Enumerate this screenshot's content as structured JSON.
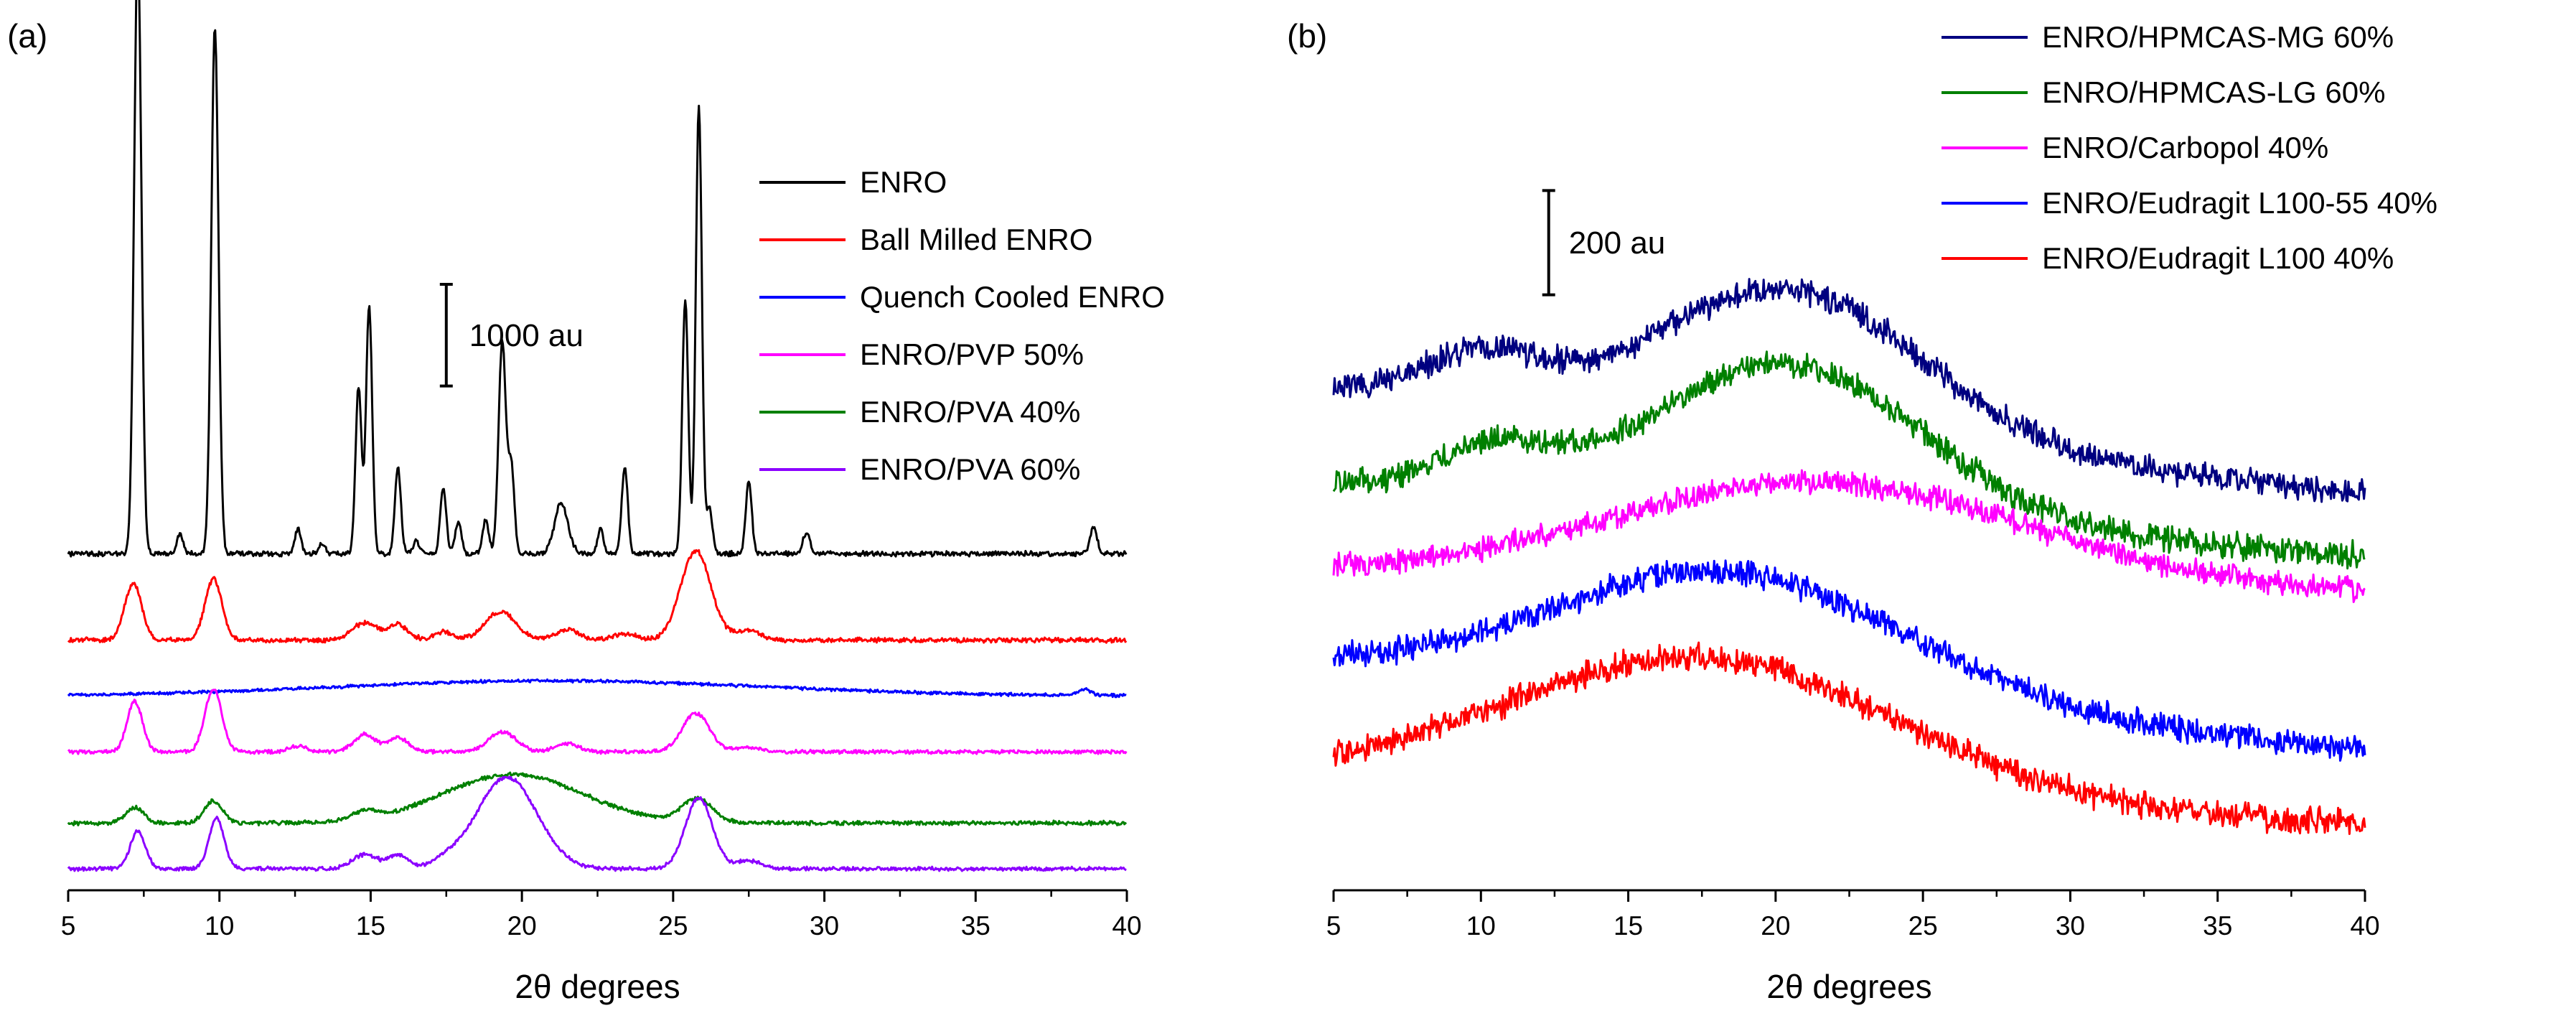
{
  "chart_data": [
    {
      "type": "line",
      "panel_label": "(a)",
      "xlabel": "2θ degrees",
      "ylabel": "",
      "xlim": [
        5,
        40
      ],
      "ylim": [
        0,
        7700
      ],
      "xticks": [
        5,
        10,
        15,
        20,
        25,
        30,
        35,
        40
      ],
      "y_axis_visible": false,
      "scale_bar": {
        "label": "1000 au",
        "value": 1000,
        "x": 17.5,
        "y_bottom": 4750
      },
      "legend": [
        "ENRO",
        "Ball Milled ENRO",
        "Quench Cooled ENRO",
        "ENRO/PVP 50%",
        "ENRO/PVA 40%",
        "ENRO/PVA 60%"
      ],
      "series": [
        {
          "name": "ENRO",
          "color": "#000000",
          "baseline": 3100,
          "noise": 20,
          "peaks": [
            [
              7.3,
              6000,
              0.12
            ],
            [
              8.7,
              200,
              0.1
            ],
            [
              9.85,
              5180,
              0.12
            ],
            [
              12.6,
              250,
              0.1
            ],
            [
              13.4,
              100,
              0.1
            ],
            [
              14.6,
              1650,
              0.1
            ],
            [
              14.95,
              2450,
              0.1
            ],
            [
              15.9,
              850,
              0.1
            ],
            [
              16.5,
              130,
              0.1
            ],
            [
              17.4,
              650,
              0.1
            ],
            [
              17.9,
              320,
              0.1
            ],
            [
              18.8,
              330,
              0.1
            ],
            [
              19.35,
              2100,
              0.12
            ],
            [
              19.65,
              850,
              0.1
            ],
            [
              21.3,
              500,
              0.22
            ],
            [
              22.6,
              250,
              0.1
            ],
            [
              23.4,
              850,
              0.1
            ],
            [
              25.4,
              2500,
              0.1
            ],
            [
              25.85,
              4420,
              0.1
            ],
            [
              26.2,
              450,
              0.1
            ],
            [
              27.5,
              700,
              0.1
            ],
            [
              29.4,
              200,
              0.12
            ],
            [
              38.9,
              250,
              0.12
            ]
          ]
        },
        {
          "name": "Ball Milled ENRO",
          "color": "#ff0000",
          "baseline": 2250,
          "noise": 18,
          "peaks": [
            [
              7.15,
              560,
              0.28
            ],
            [
              9.8,
              600,
              0.28
            ],
            [
              14.8,
              170,
              0.4
            ],
            [
              15.9,
              150,
              0.35
            ],
            [
              17.4,
              80,
              0.3
            ],
            [
              19.3,
              280,
              0.5
            ],
            [
              21.5,
              100,
              0.4
            ],
            [
              23.4,
              60,
              0.4
            ],
            [
              25.75,
              880,
              0.5
            ],
            [
              27.5,
              100,
              0.4
            ]
          ]
        },
        {
          "name": "Quench Cooled ENRO",
          "color": "#0000ff",
          "baseline": 1700,
          "noise": 12,
          "broad": [
            [
              21,
              150,
              7
            ]
          ],
          "peaks": [
            [
              38.6,
              60,
              0.2
            ]
          ]
        },
        {
          "name": "ENRO/PVP 50%",
          "color": "#ff00ff",
          "baseline": 1150,
          "noise": 15,
          "peaks": [
            [
              7.2,
              500,
              0.25
            ],
            [
              9.8,
              620,
              0.28
            ],
            [
              12.6,
              60,
              0.3
            ],
            [
              14.8,
              170,
              0.35
            ],
            [
              15.9,
              140,
              0.35
            ],
            [
              19.35,
              200,
              0.45
            ],
            [
              21.5,
              80,
              0.4
            ],
            [
              25.75,
              380,
              0.45
            ],
            [
              27.5,
              50,
              0.4
            ]
          ]
        },
        {
          "name": "ENRO/PVA 40%",
          "color": "#008000",
          "baseline": 450,
          "noise": 16,
          "broad": [
            [
              19.7,
              480,
              2.3
            ]
          ],
          "peaks": [
            [
              7.2,
              150,
              0.3
            ],
            [
              9.8,
              220,
              0.3
            ],
            [
              14.8,
              80,
              0.4
            ],
            [
              25.8,
              230,
              0.5
            ]
          ]
        },
        {
          "name": "ENRO/PVA 60%",
          "color": "#8b00ff",
          "baseline": 0,
          "noise": 15,
          "broad": [
            [
              19.5,
              900,
              1.0
            ]
          ],
          "peaks": [
            [
              7.3,
              370,
              0.25
            ],
            [
              9.9,
              500,
              0.25
            ],
            [
              14.8,
              140,
              0.4
            ],
            [
              15.9,
              130,
              0.35
            ],
            [
              17.5,
              60,
              0.4
            ],
            [
              25.85,
              700,
              0.45
            ],
            [
              27.5,
              80,
              0.4
            ]
          ]
        }
      ]
    },
    {
      "type": "line",
      "panel_label": "(b)",
      "xlabel": "2θ degrees",
      "ylabel": "",
      "xlim": [
        5,
        40
      ],
      "ylim": [
        0,
        1500
      ],
      "xticks": [
        5,
        10,
        15,
        20,
        25,
        30,
        35,
        40
      ],
      "y_axis_visible": false,
      "scale_bar": {
        "label": "200 au",
        "value": 200,
        "x": 12.3,
        "y_bottom": 1100
      },
      "legend": [
        "ENRO/HPMCAS-MG 60%",
        "ENRO/HPMCAS-LG 60%",
        "ENRO/Carbopol 40%",
        "ENRO/Eudragit L100-55 40%",
        "ENRO/Eudragit L100 40%"
      ],
      "series": [
        {
          "name": "ENRO/HPMCAS-MG 60%",
          "color": "#000080",
          "start": 920,
          "end": 720,
          "noise": 20,
          "broad": [
            [
              20.5,
              280,
              4.5
            ],
            [
              10,
              90,
              2.0
            ]
          ]
        },
        {
          "name": "ENRO/HPMCAS-LG 60%",
          "color": "#008000",
          "start": 740,
          "end": 600,
          "noise": 20,
          "broad": [
            [
              20.5,
              290,
              4.5
            ],
            [
              10.5,
              80,
              2.0
            ]
          ]
        },
        {
          "name": "ENRO/Carbopol 40%",
          "color": "#ff00ff",
          "start": 570,
          "end": 530,
          "noise": 18,
          "broad": [
            [
              21.5,
              190,
              7.0
            ]
          ]
        },
        {
          "name": "ENRO/Eudragit L100-55 40%",
          "color": "#0000ff",
          "start": 390,
          "end": 230,
          "noise": 20,
          "broad": [
            [
              18.5,
              240,
              6.0
            ]
          ]
        },
        {
          "name": "ENRO/Eudragit L100 40%",
          "color": "#ff0000",
          "start": 180,
          "end": 85,
          "noise": 20,
          "broad": [
            [
              17.5,
              260,
              6.5
            ]
          ]
        }
      ]
    }
  ]
}
